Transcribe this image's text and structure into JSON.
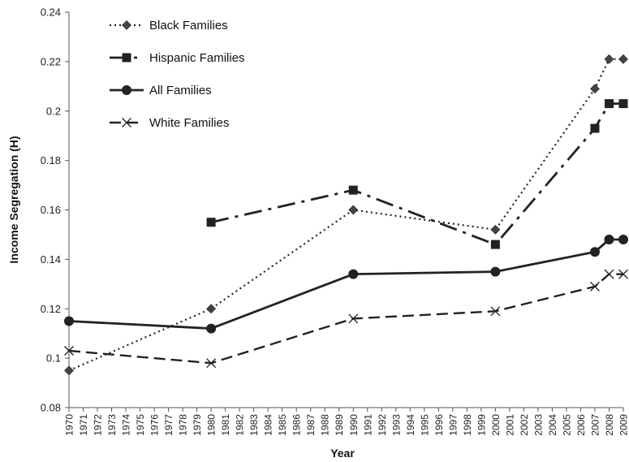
{
  "chart_data": {
    "type": "line",
    "title": "",
    "xlabel": "Year",
    "ylabel": "Income Segregation (H)",
    "ylim": [
      0.08,
      0.24
    ],
    "yticks": [
      0.08,
      0.1,
      0.12,
      0.14,
      0.16,
      0.18,
      0.2,
      0.22,
      0.24
    ],
    "ytick_labels": [
      "0.08",
      "0.1",
      "0.12",
      "0.14",
      "0.16",
      "0.18",
      "0.2",
      "0.22",
      "0.24"
    ],
    "x_categories": [
      "1970",
      "1971",
      "1972",
      "1973",
      "1974",
      "1975",
      "1976",
      "1977",
      "1978",
      "1979",
      "1980",
      "1981",
      "1982",
      "1983",
      "1984",
      "1985",
      "1986",
      "1987",
      "1988",
      "1989",
      "1990",
      "1991",
      "1992",
      "1993",
      "1994",
      "1995",
      "1996",
      "1997",
      "1998",
      "1999",
      "2000",
      "2001",
      "2002",
      "2003",
      "2004",
      "2005",
      "2006",
      "2007",
      "2008",
      "2009"
    ],
    "grid": false,
    "legend_position": "top-left",
    "series": [
      {
        "name": "Black Families",
        "marker": "diamond",
        "line_style": "dotted",
        "color": "#222222",
        "points": [
          {
            "x": "1970",
            "y": 0.095
          },
          {
            "x": "1980",
            "y": 0.12
          },
          {
            "x": "1990",
            "y": 0.16
          },
          {
            "x": "2000",
            "y": 0.152
          },
          {
            "x": "2007",
            "y": 0.209
          },
          {
            "x": "2008",
            "y": 0.221
          },
          {
            "x": "2009",
            "y": 0.221
          }
        ]
      },
      {
        "name": "Hispanic Families",
        "marker": "square",
        "line_style": "dash-dot",
        "color": "#222222",
        "points": [
          {
            "x": "1980",
            "y": 0.155
          },
          {
            "x": "1990",
            "y": 0.168
          },
          {
            "x": "2000",
            "y": 0.146
          },
          {
            "x": "2007",
            "y": 0.193
          },
          {
            "x": "2008",
            "y": 0.203
          },
          {
            "x": "2009",
            "y": 0.203
          }
        ]
      },
      {
        "name": "All Families",
        "marker": "circle",
        "line_style": "solid",
        "color": "#222222",
        "points": [
          {
            "x": "1970",
            "y": 0.115
          },
          {
            "x": "1980",
            "y": 0.112
          },
          {
            "x": "1990",
            "y": 0.134
          },
          {
            "x": "2000",
            "y": 0.135
          },
          {
            "x": "2007",
            "y": 0.143
          },
          {
            "x": "2008",
            "y": 0.148
          },
          {
            "x": "2009",
            "y": 0.148
          }
        ]
      },
      {
        "name": "White Families",
        "marker": "x",
        "line_style": "dashed",
        "color": "#222222",
        "points": [
          {
            "x": "1970",
            "y": 0.103
          },
          {
            "x": "1980",
            "y": 0.098
          },
          {
            "x": "1990",
            "y": 0.116
          },
          {
            "x": "2000",
            "y": 0.119
          },
          {
            "x": "2007",
            "y": 0.129
          },
          {
            "x": "2008",
            "y": 0.134
          },
          {
            "x": "2009",
            "y": 0.134
          }
        ]
      }
    ]
  }
}
